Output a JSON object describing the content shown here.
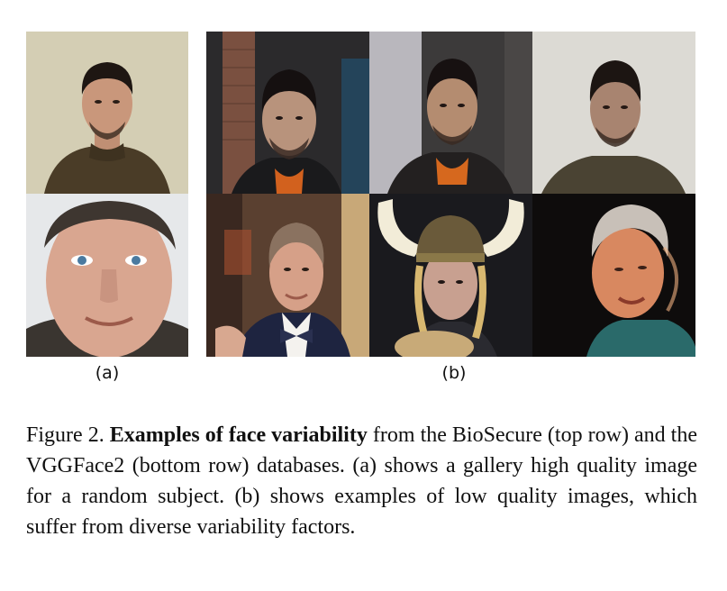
{
  "figure": {
    "sublabel_a": "(a)",
    "sublabel_b": "(b)",
    "caption": {
      "prefix": "Figure 2.",
      "bold": "Examples of face variability",
      "text": "from the BioSecure (top row) and the VGGFace2 (bottom row) databases. (a) shows a gallery high quality image for a random subject. (b) shows examples of low quality images, which suffer from diverse variability factors."
    }
  }
}
